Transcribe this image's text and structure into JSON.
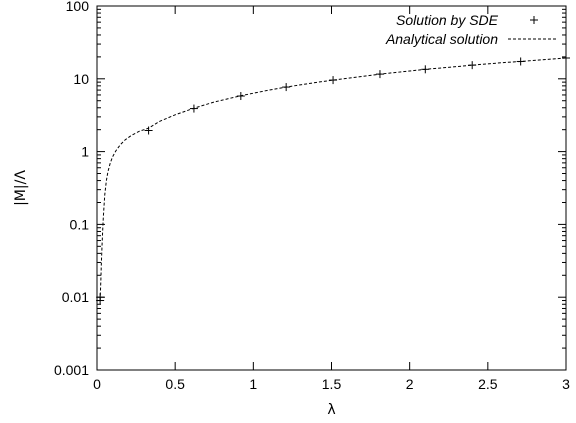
{
  "chart_data": {
    "type": "line",
    "xlabel": "λ",
    "ylabel": "|M|/Λ",
    "xlim": [
      0,
      3
    ],
    "ylim": [
      0.001,
      100
    ],
    "yscale": "log",
    "grid": false,
    "legend_position": "top-right",
    "x_ticks": [
      "0",
      "0.5",
      "1",
      "1.5",
      "2",
      "2.5",
      "3"
    ],
    "x_tick_values": [
      0,
      0.5,
      1,
      1.5,
      2,
      2.5,
      3
    ],
    "y_ticks": [
      "0.001",
      "0.01",
      "0.1",
      "1",
      "10",
      "100"
    ],
    "y_tick_values": [
      0.001,
      0.01,
      0.1,
      1,
      10,
      100
    ],
    "series": [
      {
        "name": "Solution by SDE",
        "style": "points",
        "marker": "plus",
        "x": [
          0.02,
          0.02,
          0.33,
          0.62,
          0.92,
          1.21,
          1.51,
          1.81,
          2.1,
          2.4,
          2.71,
          3.0
        ],
        "y": [
          0.009,
          0.01,
          1.95,
          3.9,
          5.8,
          7.7,
          9.6,
          11.6,
          13.5,
          15.4,
          17.3,
          19.3
        ]
      },
      {
        "name": "Analytical solution",
        "style": "dashed-line",
        "x": [
          0.02,
          0.022,
          0.025,
          0.028,
          0.032,
          0.036,
          0.04,
          0.045,
          0.05,
          0.06,
          0.07,
          0.085,
          0.1,
          0.12,
          0.15,
          0.18,
          0.22,
          0.27,
          0.33,
          0.4,
          0.5,
          0.62,
          0.75,
          0.92,
          1.1,
          1.21,
          1.4,
          1.51,
          1.7,
          1.81,
          2.0,
          2.1,
          2.3,
          2.4,
          2.6,
          2.71,
          2.9,
          3.0
        ],
        "y": [
          0.009,
          0.012,
          0.018,
          0.03,
          0.05,
          0.08,
          0.12,
          0.18,
          0.26,
          0.4,
          0.53,
          0.7,
          0.85,
          1.02,
          1.25,
          1.45,
          1.67,
          1.9,
          2.1,
          2.6,
          3.2,
          3.95,
          4.8,
          5.85,
          7.0,
          7.7,
          8.9,
          9.6,
          10.8,
          11.6,
          12.8,
          13.5,
          14.7,
          15.4,
          16.7,
          17.3,
          18.6,
          19.3
        ]
      }
    ]
  }
}
